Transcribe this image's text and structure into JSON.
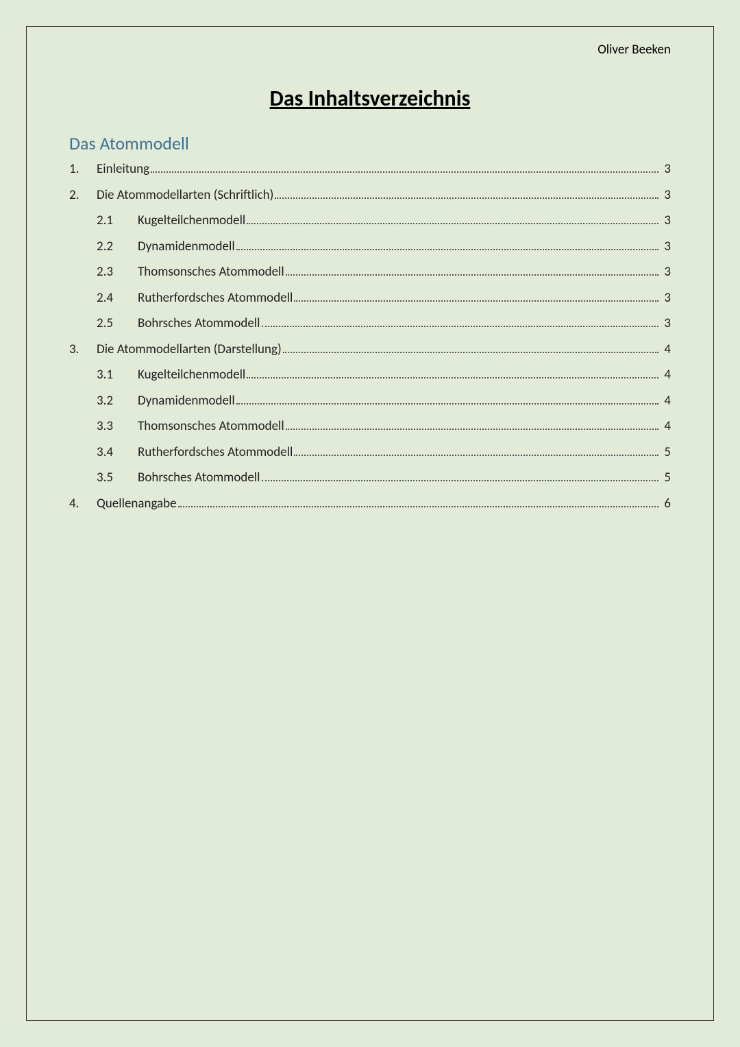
{
  "author": "Oliver Beeken",
  "title": "Das Inhaltsverzeichnis",
  "subtitle": "Das Atommodell",
  "colors": {
    "page_bg": "#e2ebd8",
    "border": "#333333",
    "title_text": "#000000",
    "subtitle_text": "#3d7296",
    "body_text": "#202020",
    "leader_dot": "#555555"
  },
  "typography": {
    "font_family": "Calibri",
    "author_fontsize": 19,
    "title_fontsize": 32,
    "subtitle_fontsize": 26,
    "toc_fontsize": 19
  },
  "toc": [
    {
      "level": 1,
      "num": "1.",
      "label": "Einleitung",
      "page": "3"
    },
    {
      "level": 1,
      "num": "2.",
      "label": "Die Atommodellarten (Schriftlich)",
      "page": "3"
    },
    {
      "level": 2,
      "num": "2.1",
      "label": "Kugelteilchenmodell",
      "page": "3"
    },
    {
      "level": 2,
      "num": "2.2",
      "label": "Dynamidenmodell",
      "page": "3"
    },
    {
      "level": 2,
      "num": "2.3",
      "label": "Thomsonsches Atommodell",
      "page": "3"
    },
    {
      "level": 2,
      "num": "2.4",
      "label": "Rutherfordsches Atommodell",
      "page": "3"
    },
    {
      "level": 2,
      "num": "2.5",
      "label": "Bohrsches Atommodell",
      "page": "3"
    },
    {
      "level": 1,
      "num": "3.",
      "label": "Die Atommodellarten (Darstellung)",
      "page": "4"
    },
    {
      "level": 2,
      "num": "3.1",
      "label": "Kugelteilchenmodell",
      "page": "4"
    },
    {
      "level": 2,
      "num": "3.2",
      "label": "Dynamidenmodell",
      "page": "4"
    },
    {
      "level": 2,
      "num": "3.3",
      "label": "Thomsonsches Atommodell",
      "page": "4"
    },
    {
      "level": 2,
      "num": "3.4",
      "label": "Rutherfordsches Atommodell",
      "page": "5"
    },
    {
      "level": 2,
      "num": "3.5",
      "label": "Bohrsches Atommodell",
      "page": "5"
    },
    {
      "level": 1,
      "num": "4.",
      "label": "Quellenangabe",
      "page": "6"
    }
  ]
}
